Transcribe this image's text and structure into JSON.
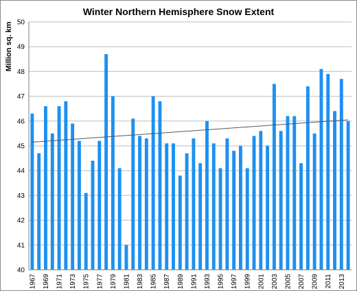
{
  "chart_data": {
    "type": "bar",
    "title": "Winter Northern Hemisphere Snow Extent",
    "xlabel": "",
    "ylabel": "Million sq. km",
    "ylim": [
      40,
      50
    ],
    "yticks": [
      40,
      41,
      42,
      43,
      44,
      45,
      46,
      47,
      48,
      49,
      50
    ],
    "grid": true,
    "bar_color": "#1e90f0",
    "trendline_color": "#555555",
    "categories": [
      "1967",
      "1968",
      "1969",
      "1970",
      "1971",
      "1972",
      "1973",
      "1974",
      "1975",
      "1976",
      "1977",
      "1978",
      "1979",
      "1980",
      "1981",
      "1982",
      "1983",
      "1984",
      "1985",
      "1986",
      "1987",
      "1988",
      "1989",
      "1990",
      "1991",
      "1992",
      "1993",
      "1994",
      "1995",
      "1996",
      "1997",
      "1998",
      "1999",
      "2000",
      "2001",
      "2002",
      "2003",
      "2004",
      "2005",
      "2006",
      "2007",
      "2008",
      "2009",
      "2010",
      "2011",
      "2012",
      "2013",
      "2014"
    ],
    "xtick_labels": [
      "1967",
      "1969",
      "1971",
      "1973",
      "1975",
      "1977",
      "1979",
      "1981",
      "1983",
      "1985",
      "1987",
      "1989",
      "1991",
      "1993",
      "1995",
      "1997",
      "1999",
      "2001",
      "2003",
      "2005",
      "2007",
      "2009",
      "2011",
      "2013"
    ],
    "values": [
      46.3,
      44.7,
      46.6,
      45.5,
      46.6,
      46.8,
      45.9,
      45.2,
      43.1,
      44.4,
      45.2,
      48.7,
      47.0,
      44.1,
      41.0,
      46.1,
      45.4,
      45.3,
      47.0,
      46.8,
      45.1,
      45.1,
      43.8,
      44.7,
      45.3,
      44.3,
      46.0,
      45.1,
      44.1,
      45.3,
      44.8,
      45.0,
      44.1,
      45.4,
      45.6,
      45.0,
      47.5,
      45.6,
      46.2,
      46.2,
      44.3,
      47.4,
      45.5,
      48.1,
      47.9,
      46.4,
      47.7,
      46.0
    ],
    "trendline": {
      "start": 45.15,
      "end": 46.05
    }
  }
}
